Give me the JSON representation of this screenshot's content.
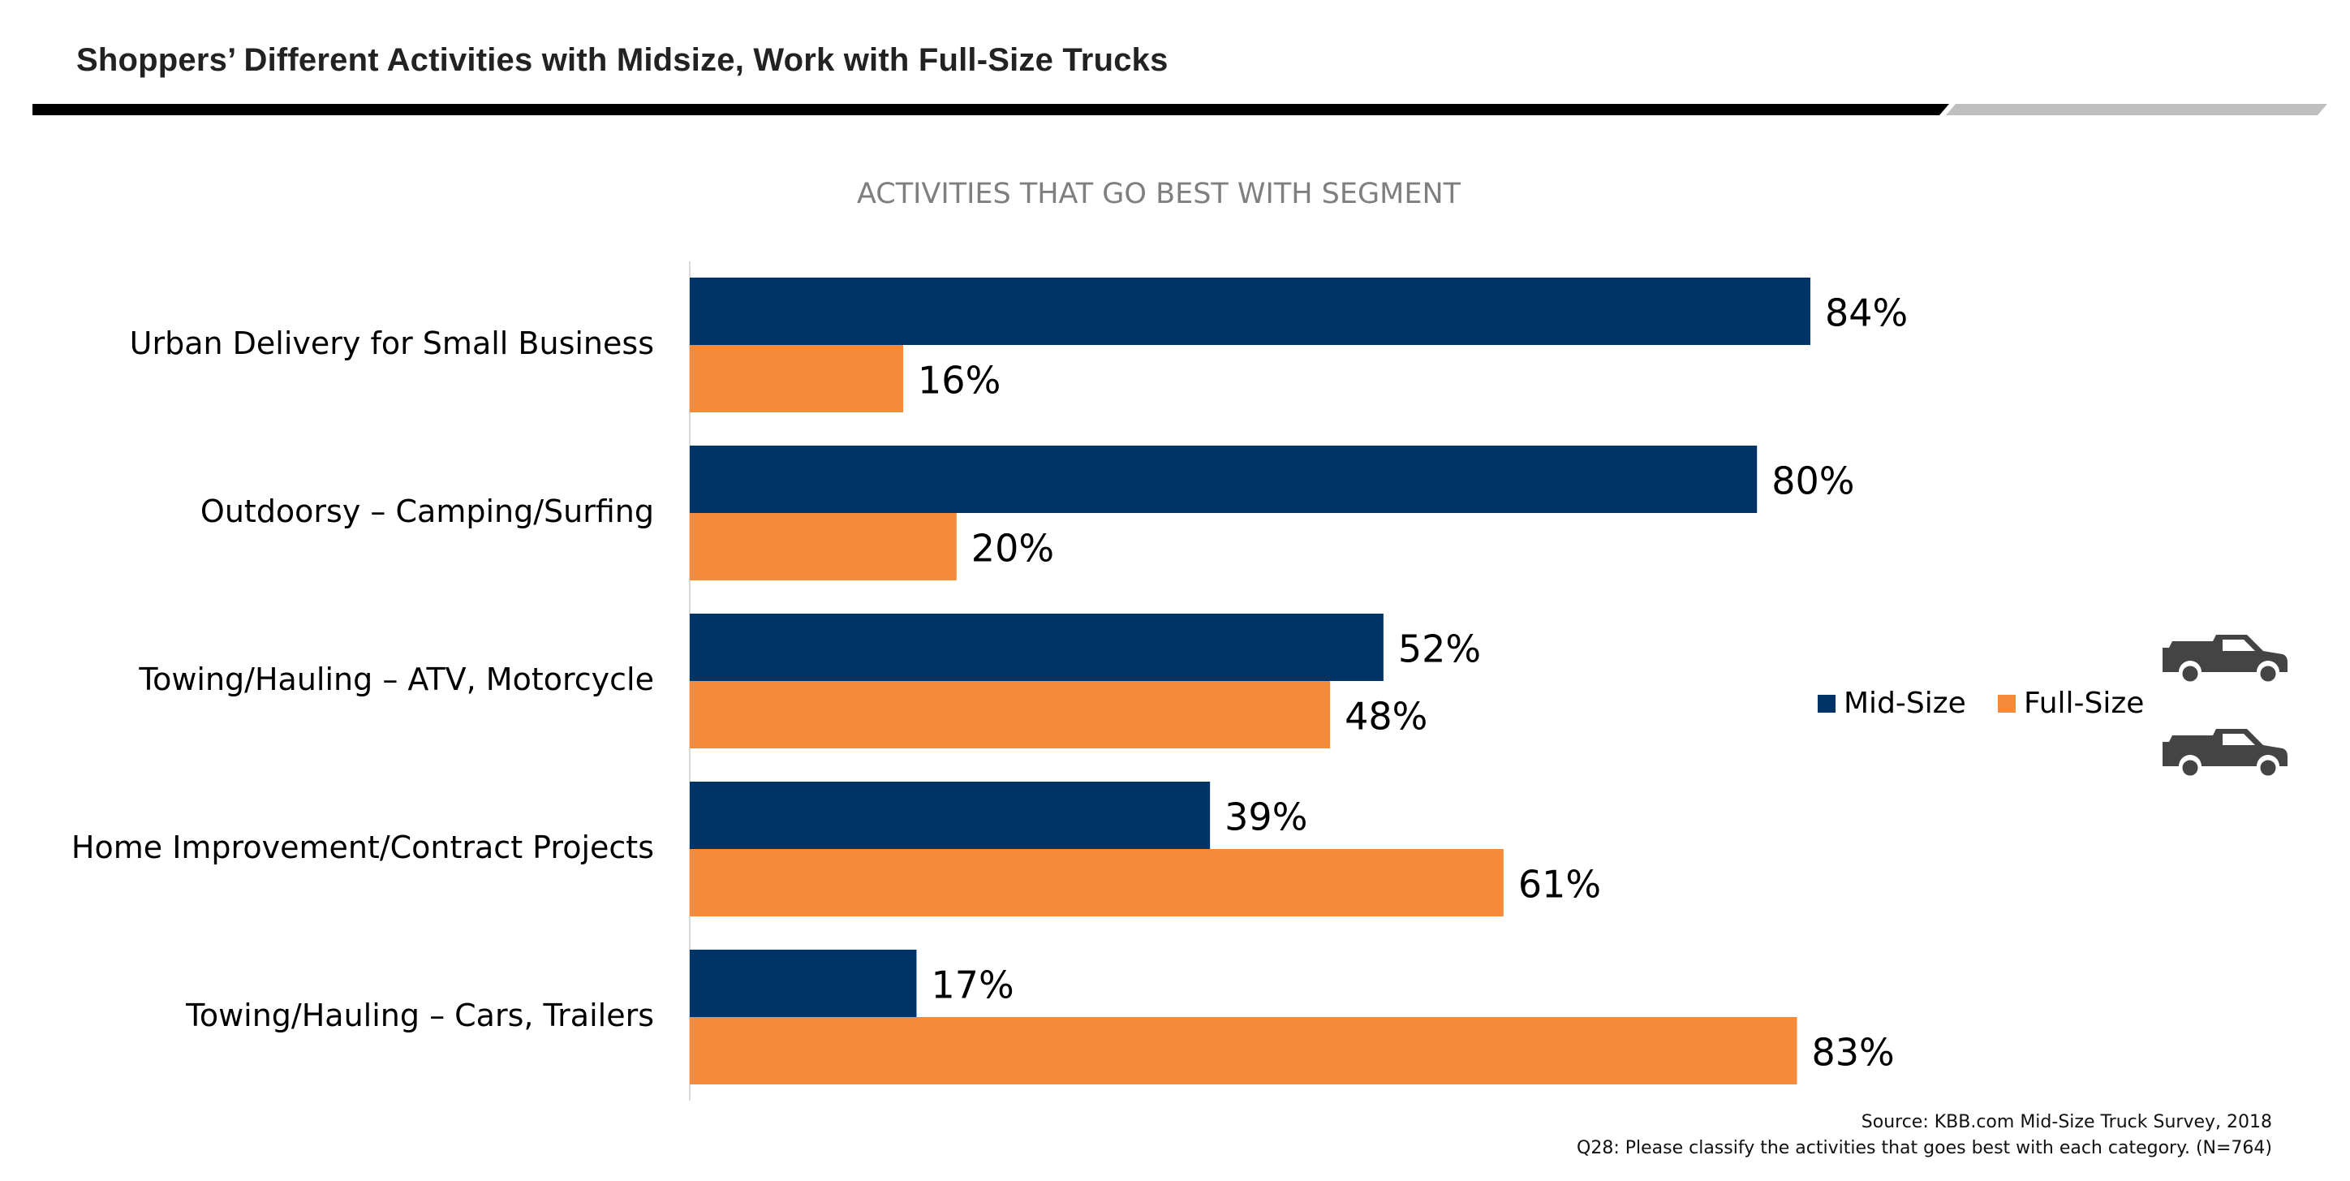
{
  "slide": {
    "title": "Shoppers’ Different Activities with Midsize, Work with Full-Size Trucks",
    "source_line": "Source: KBB.com Mid-Size Truck Survey, 2018",
    "question_line": "Q28: Please classify the activities that goes best with each category. (N=764)"
  },
  "legend": {
    "position": "right",
    "items": [
      {
        "label": "Mid-Size",
        "color": "#003366",
        "icon": "pickup-truck-icon"
      },
      {
        "label": "Full-Size",
        "color": "#F58B3A",
        "icon": "pickup-truck-icon"
      }
    ]
  },
  "chart_data": {
    "type": "bar",
    "orientation": "horizontal",
    "title": "ACTIVITIES THAT GO BEST WITH SEGMENT",
    "categories": [
      "Urban Delivery for Small Business",
      "Outdoorsy – Camping/Surfing",
      "Towing/Hauling – ATV, Motorcycle",
      "Home Improvement/Contract Projects",
      "Towing/Hauling – Cars, Trailers"
    ],
    "series": [
      {
        "name": "Mid-Size",
        "color": "#003366",
        "values": [
          84,
          80,
          52,
          39,
          17
        ],
        "labels": [
          "84%",
          "80%",
          "52%",
          "39%",
          "17%"
        ]
      },
      {
        "name": "Full-Size",
        "color": "#F58B3A",
        "values": [
          16,
          20,
          48,
          61,
          83
        ],
        "labels": [
          "16%",
          "20%",
          "48%",
          "61%",
          "83%"
        ]
      }
    ],
    "xlim": [
      0,
      100
    ],
    "grid": false,
    "legend": "right"
  }
}
